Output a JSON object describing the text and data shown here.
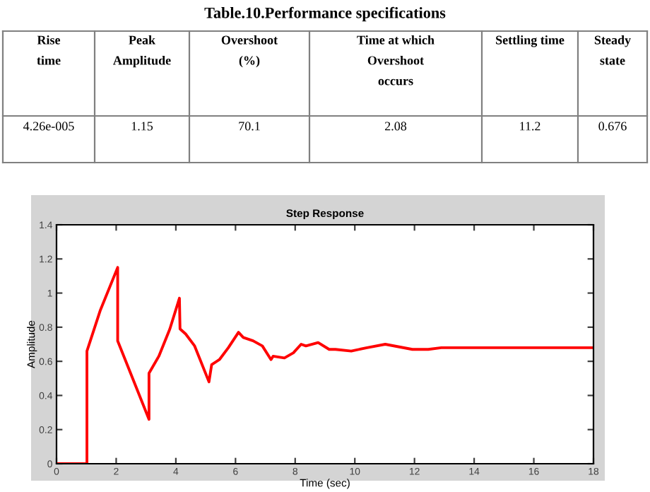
{
  "chart_data": [
    {
      "type": "other",
      "title": "Table.10.Performance specifications",
      "categories": [
        "Rise\ntime",
        "Peak\nAmplitude",
        "Overshoot\n(%)",
        "Time at which\nOvershoot\noccurs",
        "Settling time",
        "Steady\nstate"
      ],
      "cell_labels": [
        [
          "4.26e-005",
          "1.15",
          "70.1",
          "2.08",
          "11.2",
          "0.676"
        ]
      ]
    },
    {
      "type": "line",
      "title": "Step Response",
      "xlabel": "Time (sec)",
      "ylabel": "Amplitude",
      "xlim": [
        0,
        18
      ],
      "ylim": [
        0,
        1.4
      ],
      "xticks": [
        0,
        2,
        4,
        6,
        8,
        10,
        12,
        14,
        16,
        18
      ],
      "yticks": [
        0,
        0.2,
        0.4,
        0.6,
        0.8,
        1,
        1.2,
        1.4
      ],
      "grid": false,
      "series": [
        {
          "color": "#ff0000",
          "x": [
            0,
            1.02,
            1.02,
            1.47,
            2.05,
            2.05,
            3.1,
            3.1,
            3.43,
            3.8,
            4.12,
            4.14,
            4.33,
            4.63,
            5.11,
            5.2,
            5.46,
            5.76,
            6.1,
            6.26,
            6.59,
            6.9,
            7.19,
            7.26,
            7.64,
            7.94,
            8.2,
            8.36,
            8.77,
            9.14,
            9.35,
            9.88,
            10.41,
            11.02,
            11.93,
            12.46,
            12.9,
            13.9,
            14.96,
            18
          ],
          "values": [
            0,
            0,
            0.66,
            0.9,
            1.15,
            0.72,
            0.26,
            0.53,
            0.63,
            0.79,
            0.97,
            0.79,
            0.76,
            0.69,
            0.48,
            0.58,
            0.61,
            0.68,
            0.77,
            0.74,
            0.72,
            0.69,
            0.61,
            0.63,
            0.62,
            0.65,
            0.7,
            0.69,
            0.71,
            0.67,
            0.67,
            0.66,
            0.68,
            0.7,
            0.67,
            0.67,
            0.68,
            0.68,
            0.68,
            0.68
          ]
        }
      ]
    }
  ]
}
